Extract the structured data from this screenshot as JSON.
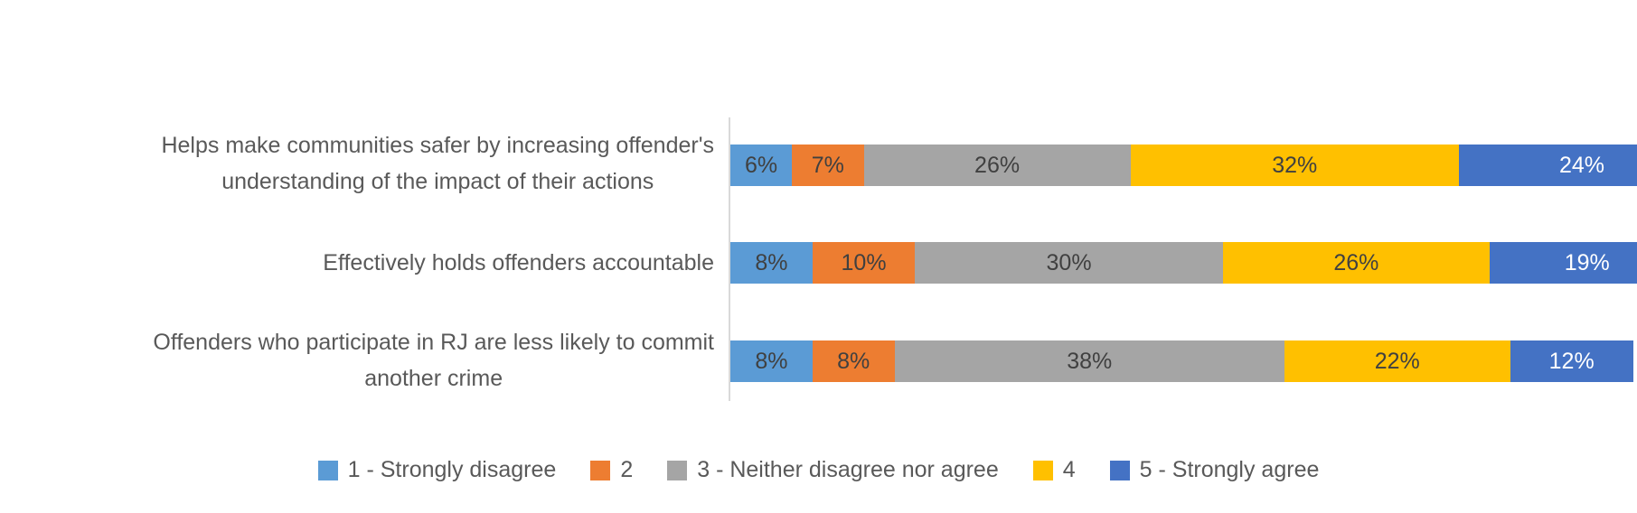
{
  "chart_data": {
    "type": "bar",
    "orientation": "horizontal",
    "stacked": true,
    "title": "",
    "value_suffix": "%",
    "legend_position": "bottom",
    "grid": false,
    "axis_line_color": "#D9D9D9",
    "text_color": "#595959",
    "categories": [
      {
        "lines": [
          "Helps make communities safer by increasing offender's",
          "understanding of the impact of their actions"
        ]
      },
      {
        "lines": [
          "Effectively holds offenders accountable"
        ]
      },
      {
        "lines": [
          "Offenders who participate in RJ are less likely to commit",
          "another crime"
        ]
      }
    ],
    "series": [
      {
        "name": "1 - Strongly disagree",
        "color": "#5B9BD5",
        "label_color": "#404040",
        "values": [
          6,
          8,
          8
        ]
      },
      {
        "name": "2",
        "color": "#ED7D31",
        "label_color": "#404040",
        "values": [
          7,
          10,
          8
        ]
      },
      {
        "name": "3 - Neither disagree nor agree",
        "color": "#A5A5A5",
        "label_color": "#404040",
        "values": [
          26,
          30,
          38
        ]
      },
      {
        "name": "4",
        "color": "#FFC000",
        "label_color": "#404040",
        "values": [
          32,
          26,
          22
        ]
      },
      {
        "name": "5 - Strongly agree",
        "color": "#4472C4",
        "label_color": "#FFFFFF",
        "values": [
          24,
          19,
          12
        ]
      }
    ]
  }
}
